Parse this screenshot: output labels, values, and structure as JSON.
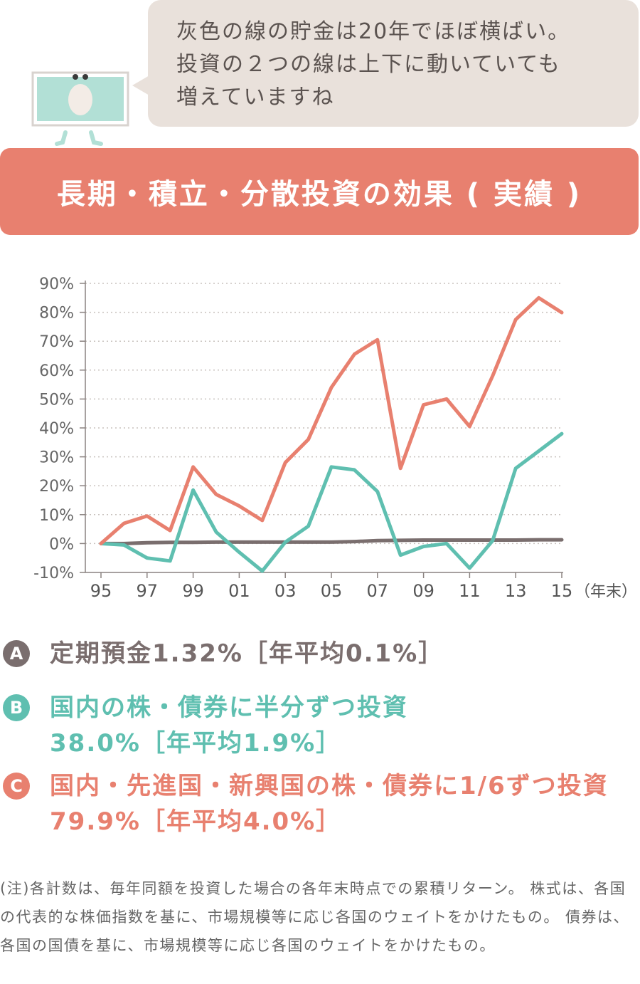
{
  "bubble": {
    "lines": [
      "灰色の線の貯金は20年でほぼ横ばい。",
      "投資の２つの線は上下に動いていても",
      "増えていますね"
    ]
  },
  "title": "長期・積立・分散投資の効果 ( 実績 )",
  "colors": {
    "gray": "#7a6e6e",
    "teal": "#5fbfb0",
    "salmon": "#e8806f",
    "title_bg": "#e8806f",
    "bubble_bg": "#e9e1db",
    "mascot": "#b2e0d6"
  },
  "chart_data": {
    "type": "line",
    "x": [
      1995,
      1996,
      1997,
      1998,
      1999,
      2000,
      2001,
      2002,
      2003,
      2004,
      2005,
      2006,
      2007,
      2008,
      2009,
      2010,
      2011,
      2012,
      2013,
      2014,
      2015
    ],
    "x_ticks": [
      "95",
      "97",
      "99",
      "01",
      "03",
      "05",
      "07",
      "09",
      "11",
      "13",
      "15"
    ],
    "x_tick_values": [
      1995,
      1997,
      1999,
      2001,
      2003,
      2005,
      2007,
      2009,
      2011,
      2013,
      2015
    ],
    "x_unit": "（年末）",
    "y_ticks": [
      -10,
      0,
      10,
      20,
      30,
      40,
      50,
      60,
      70,
      80,
      90
    ],
    "y_tick_labels": [
      "-10%",
      "0%",
      "10%",
      "20%",
      "30%",
      "40%",
      "50%",
      "60%",
      "70%",
      "80%",
      "90%"
    ],
    "ylim": [
      -10,
      90
    ],
    "grid": true,
    "series": [
      {
        "name": "A",
        "color": "#7a6e6e",
        "values": [
          0,
          0,
          0.3,
          0.4,
          0.4,
          0.5,
          0.5,
          0.5,
          0.5,
          0.5,
          0.5,
          0.7,
          1.0,
          1.1,
          1.2,
          1.2,
          1.2,
          1.2,
          1.2,
          1.3,
          1.3
        ]
      },
      {
        "name": "B",
        "color": "#5fbfb0",
        "values": [
          0,
          -0.5,
          -5,
          -6,
          18.5,
          4,
          -3,
          -9.5,
          0.5,
          6,
          26.5,
          25.5,
          18,
          -4,
          -1,
          0,
          -8.5,
          1,
          26,
          32,
          38
        ]
      },
      {
        "name": "C",
        "color": "#e8806f",
        "values": [
          0,
          7,
          9.5,
          4.5,
          26.5,
          17,
          13,
          8,
          28,
          36,
          54,
          65.5,
          70.5,
          26,
          48,
          50,
          40.5,
          58,
          77.5,
          85,
          79.9
        ]
      }
    ]
  },
  "legend": [
    {
      "badge": "A",
      "color": "#7a6e6e",
      "lines": [
        "定期預金1.32%［年平均0.1%］"
      ]
    },
    {
      "badge": "B",
      "color": "#5fbfb0",
      "lines": [
        "国内の株・債券に半分ずつ投資",
        "38.0%［年平均1.9%］"
      ]
    },
    {
      "badge": "C",
      "color": "#e8806f",
      "lines": [
        "国内・先進国・新興国の株・債券に1/6ずつ投資",
        "79.9%［年平均4.0%］"
      ]
    }
  ],
  "note": "(注)各計数は、毎年同額を投資した場合の各年末時点での累積リターン。 株式は、各国の代表的な株価指数を基に、市場規模等に応じ各国のウェイトをかけたもの。 債券は、各国の国債を基に、市場規模等に応じ各国のウェイトをかけたもの。"
}
